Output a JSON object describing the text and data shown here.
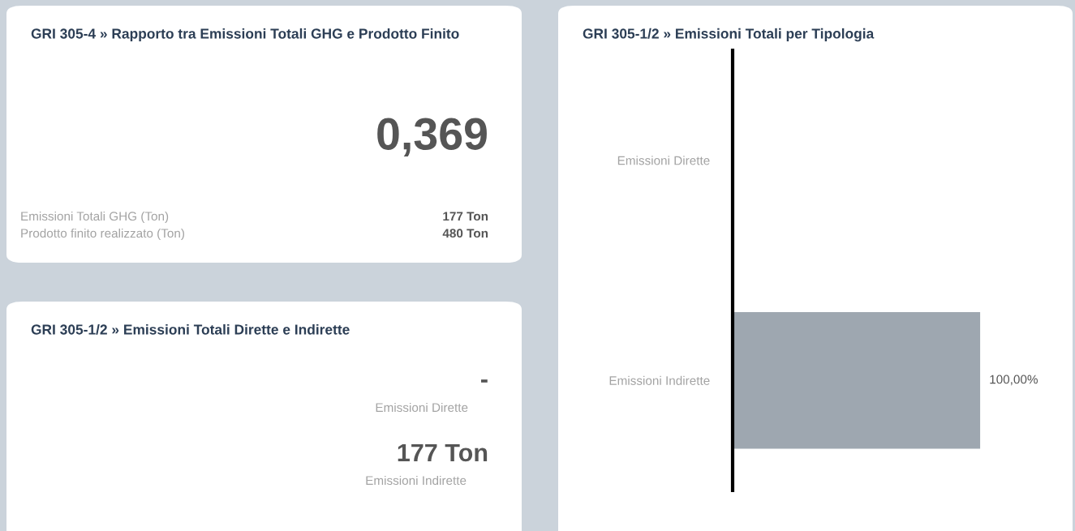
{
  "chart_data": [
    {
      "type": "other",
      "title": "GRI 305-4 » Rapporto tra Emissioni Totali GHG e Prodotto Finito",
      "annotations": [
        "0,369",
        "Emissioni Totali GHG (Ton)",
        "177 Ton",
        "Prodotto finito realizzato (Ton)",
        "480 Ton"
      ]
    },
    {
      "type": "other",
      "title": "GRI 305-1/2 » Emissioni Totali Dirette e Indirette",
      "annotations": [
        "-",
        "Emissioni Dirette",
        "177 Ton",
        "Emissioni Indirette"
      ]
    },
    {
      "type": "bar",
      "title": "GRI 305-1/2 » Emissioni Totali per Tipologia",
      "orientation": "horizontal",
      "categories": [
        "Emissioni Dirette",
        "Emissioni Indirette"
      ],
      "values": [
        0,
        100
      ],
      "value_labels": [
        null,
        "100,00%"
      ],
      "color": "#9ea7b0"
    }
  ]
}
